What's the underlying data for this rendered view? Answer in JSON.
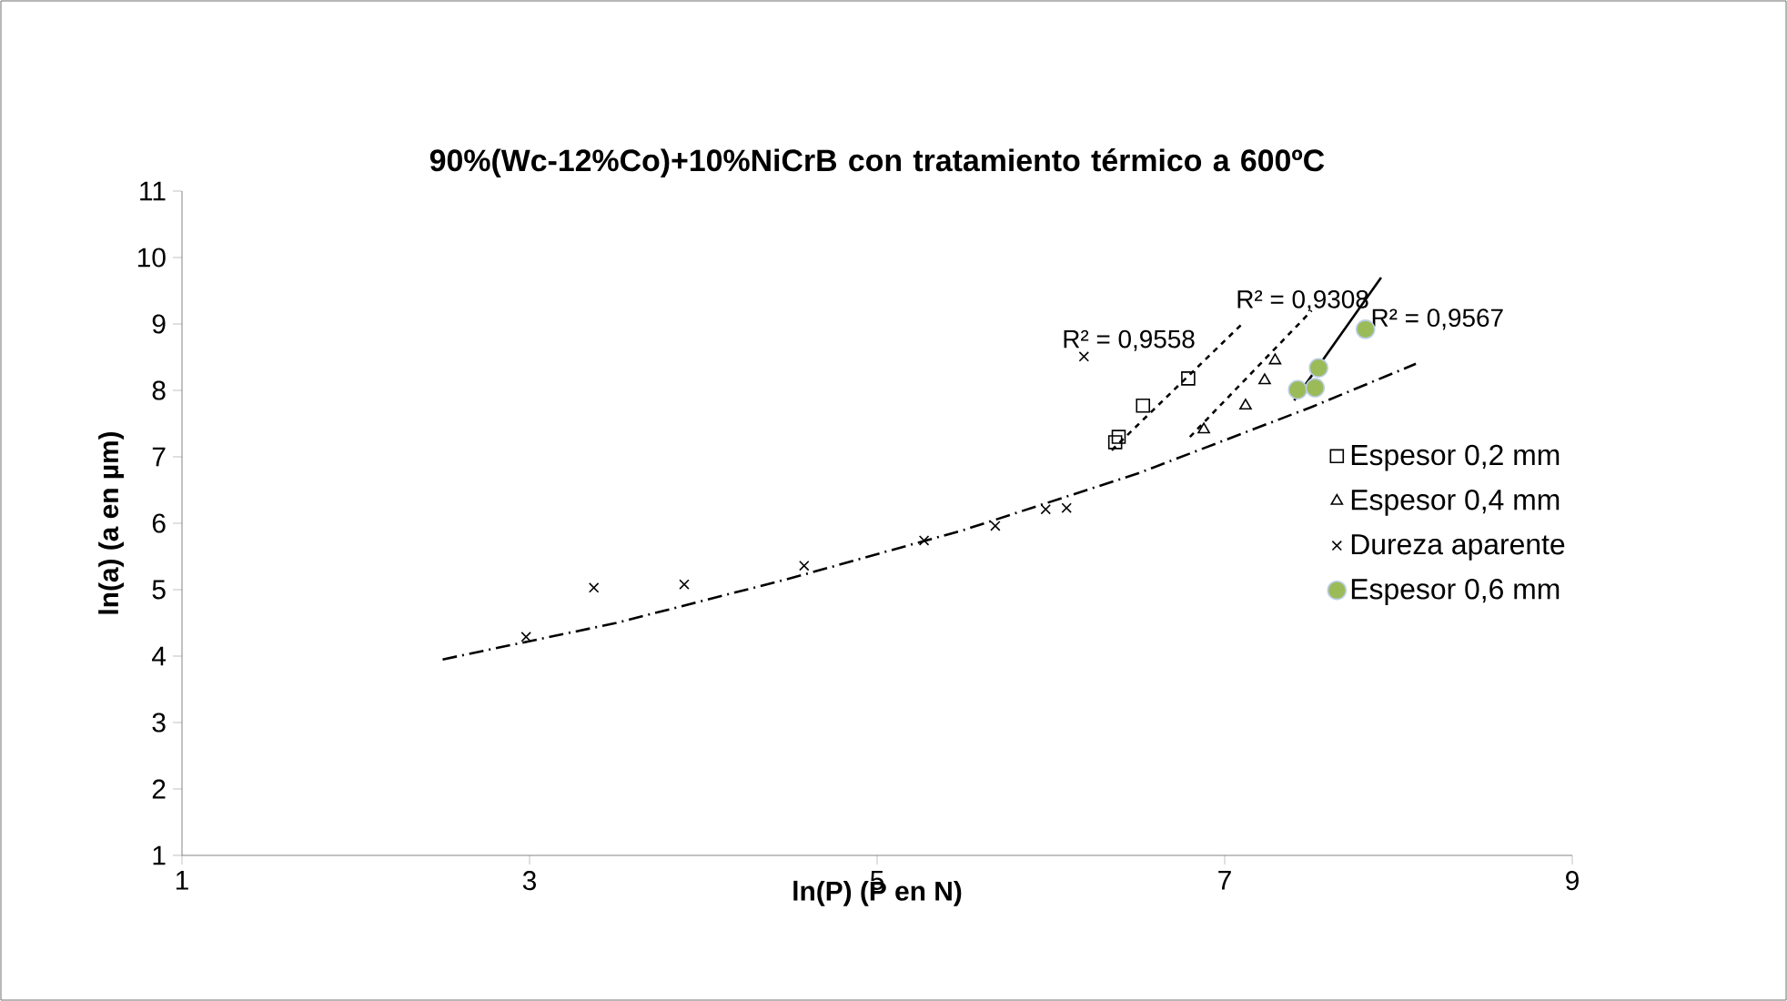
{
  "chart_data": {
    "type": "scatter",
    "title": "90%(Wc-12%Co)+10%NiCrB con tratamiento térmico a 600ºC",
    "xlabel": "ln(P) (P en N)",
    "ylabel": "ln(a) (a en µm)",
    "xlim": [
      1,
      9
    ],
    "ylim": [
      1,
      11
    ],
    "xticks": [
      1,
      3,
      5,
      7,
      9
    ],
    "yticks": [
      1,
      2,
      3,
      4,
      5,
      6,
      7,
      8,
      9,
      10,
      11
    ],
    "grid": false,
    "legend": "right",
    "series": [
      {
        "name": "Espesor 0,2  mm",
        "color": "#000000",
        "marker": "square",
        "x": [
          6.37,
          6.39,
          6.53,
          6.79
        ],
        "values": [
          7.22,
          7.3,
          7.77,
          8.18
        ]
      },
      {
        "name": "Espesor 0,4 mm",
        "color": "#000000",
        "marker": "triangle",
        "x": [
          6.88,
          7.12,
          7.23,
          7.29
        ],
        "values": [
          7.41,
          7.77,
          8.15,
          8.45
        ]
      },
      {
        "name": "Dureza aparente",
        "color": "#000000",
        "marker": "cross",
        "x": [
          2.98,
          3.37,
          3.89,
          4.58,
          5.27,
          5.68,
          5.97,
          6.09,
          6.19
        ],
        "values": [
          4.29,
          5.03,
          5.08,
          5.36,
          5.74,
          5.96,
          6.21,
          6.23,
          8.51
        ]
      },
      {
        "name": "Espesor 0,6 mm",
        "color": "#9bbb59",
        "marker": "circle",
        "x": [
          7.42,
          7.52,
          7.54,
          7.81
        ],
        "values": [
          8.01,
          8.04,
          8.34,
          8.92
        ]
      },
      {
        "type": "line",
        "color": "#000000",
        "line_style": "dashed",
        "marker": "none",
        "x": [
          6.35,
          7.1
        ],
        "values": [
          7.1,
          9.0
        ]
      },
      {
        "type": "line",
        "color": "#000000",
        "line_style": "dashed",
        "marker": "none",
        "x": [
          6.8,
          7.5
        ],
        "values": [
          7.3,
          9.2
        ]
      },
      {
        "type": "line",
        "color": "#000000",
        "line_style": "dashdot",
        "marker": "none",
        "x": [
          2.5,
          3.5,
          4.5,
          5.5,
          6.5,
          7.5,
          8.1
        ],
        "values": [
          3.95,
          4.5,
          5.17,
          5.9,
          6.75,
          7.75,
          8.4
        ]
      },
      {
        "type": "line",
        "color": "#000000",
        "line_style": "solid",
        "marker": "none",
        "x": [
          7.4,
          7.9
        ],
        "values": [
          7.85,
          9.7
        ]
      }
    ],
    "annotations": [
      "R² = 0,9558",
      "R² = 0,9308",
      "R² = 0,9567"
    ]
  }
}
